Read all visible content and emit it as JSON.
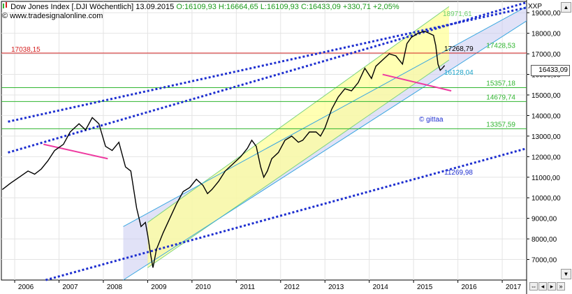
{
  "header": {
    "symbol_title": "Dow Jones Index [.DJI  Wöchentlich]",
    "date": "13.09.2015",
    "ohlc": "O:16109,93 H:16664,65 L:16109,93",
    "close_change": "C:16433,09 +330,71 +2,05%",
    "source": "© www.tradesignalonline.com",
    "symbol_tag": "XXP",
    "copyright_mark": "© gittaa"
  },
  "colors": {
    "price": "#000000",
    "horizontal_red": "#d42020",
    "horizontal_green": "#2fb52f",
    "channel_dots": "#1e2fd0",
    "regression_fill": "#ffff99",
    "lower_channel_fill": "#c8caf0",
    "pink_trend": "#ee3aa0",
    "axis_text": "#000000"
  },
  "chart_data": {
    "type": "line",
    "title": "Dow Jones Index [.DJI  Wöchentlich]",
    "x_ticks": [
      "2006",
      "2007",
      "2008",
      "2009",
      "2010",
      "2011",
      "2012",
      "2013",
      "2014",
      "2015",
      "2016",
      "2017"
    ],
    "x_range": [
      2005.7,
      2017.55
    ],
    "y_ticks": [
      "7000,00",
      "8000,00",
      "9000,00",
      "10000,00",
      "11000,00",
      "12000,00",
      "13000,00",
      "14000,00",
      "15000,00",
      "16000,00",
      "17000,00",
      "18000,00",
      "19000,00"
    ],
    "ylim": [
      6000,
      19550
    ],
    "last_value_label": "16433,09",
    "price_series": {
      "name": "Dow Jones Index",
      "x": [
        2005.72,
        2005.9,
        2006.1,
        2006.3,
        2006.45,
        2006.6,
        2006.75,
        2006.9,
        2007.1,
        2007.25,
        2007.45,
        2007.6,
        2007.75,
        2007.9,
        2008.05,
        2008.2,
        2008.35,
        2008.5,
        2008.62,
        2008.75,
        2008.85,
        2008.95,
        2009.0,
        2009.07,
        2009.12,
        2009.2,
        2009.35,
        2009.5,
        2009.65,
        2009.8,
        2009.95,
        2010.1,
        2010.25,
        2010.35,
        2010.45,
        2010.6,
        2010.75,
        2010.9,
        2011.1,
        2011.25,
        2011.35,
        2011.45,
        2011.55,
        2011.62,
        2011.7,
        2011.8,
        2011.95,
        2012.1,
        2012.25,
        2012.4,
        2012.5,
        2012.65,
        2012.8,
        2012.9,
        2013.0,
        2013.15,
        2013.3,
        2013.45,
        2013.6,
        2013.75,
        2013.9,
        2014.05,
        2014.15,
        2014.3,
        2014.45,
        2014.6,
        2014.75,
        2014.85,
        2014.95,
        2015.1,
        2015.25,
        2015.35,
        2015.45,
        2015.5,
        2015.55,
        2015.6,
        2015.65,
        2015.7
      ],
      "y": [
        10400,
        10700,
        11000,
        11300,
        11150,
        11400,
        11800,
        12300,
        12600,
        13200,
        13600,
        13300,
        13900,
        13600,
        12500,
        12300,
        12700,
        11500,
        11300,
        9500,
        8600,
        8800,
        8200,
        7200,
        6600,
        7500,
        8300,
        9000,
        9700,
        10300,
        10500,
        10900,
        10600,
        10200,
        10400,
        10800,
        11300,
        11600,
        12000,
        12400,
        12800,
        12500,
        11500,
        11000,
        11300,
        11900,
        12200,
        12800,
        13000,
        12700,
        12800,
        13200,
        13200,
        13000,
        13400,
        14300,
        14900,
        15300,
        15200,
        15600,
        16300,
        15800,
        16400,
        16700,
        17000,
        16900,
        16500,
        17500,
        17800,
        18000,
        18100,
        18000,
        17900,
        17400,
        16500,
        16200,
        16300,
        16433
      ]
    },
    "horizontal_levels": [
      {
        "value": 17038.15,
        "label": "17038,15",
        "color": "red",
        "label_side": "left"
      },
      {
        "value": 15357.18,
        "label": "15357,18",
        "color": "green",
        "label_side": "right"
      },
      {
        "value": 14679.74,
        "label": "14679,74",
        "color": "green",
        "label_side": "right"
      },
      {
        "value": 13357.59,
        "label": "13357,59",
        "color": "green",
        "label_side": "right"
      }
    ],
    "annotations": [
      {
        "text": "18971,61",
        "value": 18971.61,
        "color": "green"
      },
      {
        "text": "17428,53",
        "value": 17428.53,
        "color": "green"
      },
      {
        "text": "17268,79",
        "value": 17268.79,
        "color": "black"
      },
      {
        "text": "16128,04",
        "value": 16128.04,
        "color": "teal"
      },
      {
        "text": "11269,98",
        "value": 11269.98,
        "color": "blue"
      }
    ],
    "dotted_channel_lines": [
      {
        "x": [
          2005.85,
          2017.55
        ],
        "y": [
          13700,
          19250
        ]
      },
      {
        "x": [
          2005.85,
          2017.55
        ],
        "y": [
          12200,
          19500
        ]
      },
      {
        "x": [
          2006.7,
          2017.55
        ],
        "y": [
          6000,
          12400
        ]
      }
    ],
    "regression_channel": {
      "x": [
        2009.0,
        2015.8
      ],
      "upper": [
        8800,
        19300
      ],
      "lower": [
        6600,
        16700
      ]
    },
    "lower_band": {
      "x": [
        2008.45,
        2017.55
      ],
      "upper": [
        8600,
        19300
      ],
      "lower": [
        6000,
        18600
      ]
    },
    "pink_lines": [
      {
        "x": [
          2006.65,
          2008.1
        ],
        "y": [
          12600,
          11900
        ]
      },
      {
        "x": [
          2014.3,
          2015.85
        ],
        "y": [
          16000,
          15200
        ]
      }
    ],
    "grid": true,
    "legend": "none"
  }
}
